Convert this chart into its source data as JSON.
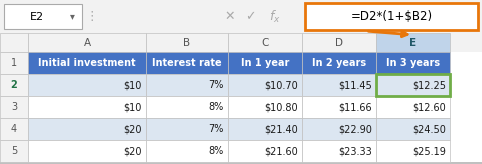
{
  "formula_bar": {
    "cell_ref": "E2",
    "formula": "=D2*(1+$B2)",
    "formula_box_color": "#E8760A",
    "toolbar_bg": "#f2f2f2"
  },
  "col_letters": [
    "A",
    "B",
    "C",
    "D",
    "E"
  ],
  "row_nums": [
    "1",
    "2",
    "3",
    "4",
    "5"
  ],
  "headers": [
    "Initial investment",
    "Interest rate",
    "In 1 year",
    "In 2 years",
    "In 3 years"
  ],
  "header_bg": "#4472C4",
  "header_fg": "#ffffff",
  "rows": [
    [
      "$10",
      "7%",
      "$10.70",
      "$11.45",
      "$12.25"
    ],
    [
      "$10",
      "8%",
      "$10.80",
      "$11.66",
      "$12.60"
    ],
    [
      "$20",
      "7%",
      "$21.40",
      "$22.90",
      "$24.50"
    ],
    [
      "$20",
      "8%",
      "$21.60",
      "$23.33",
      "$25.19"
    ]
  ],
  "row_bg_alt": "#dce6f1",
  "row_bg_white": "#ffffff",
  "selected_cell_border": "#70AD47",
  "selected_col_header_bg": "#c0d4ea",
  "grid_color": "#c0c0c0",
  "col_header_bg": "#f2f2f2",
  "row_header_bg": "#f2f2f2",
  "row_header_fg": "#555555",
  "col_header_fg": "#555555",
  "selected_col_header_fg": "#215868",
  "row2_num_fg": "#217346",
  "background": "#ffffff",
  "formula_bar_bg": "#f2f2f2",
  "icon_color": "#aaaaaa",
  "cell_ref_border": "#aaaaaa"
}
